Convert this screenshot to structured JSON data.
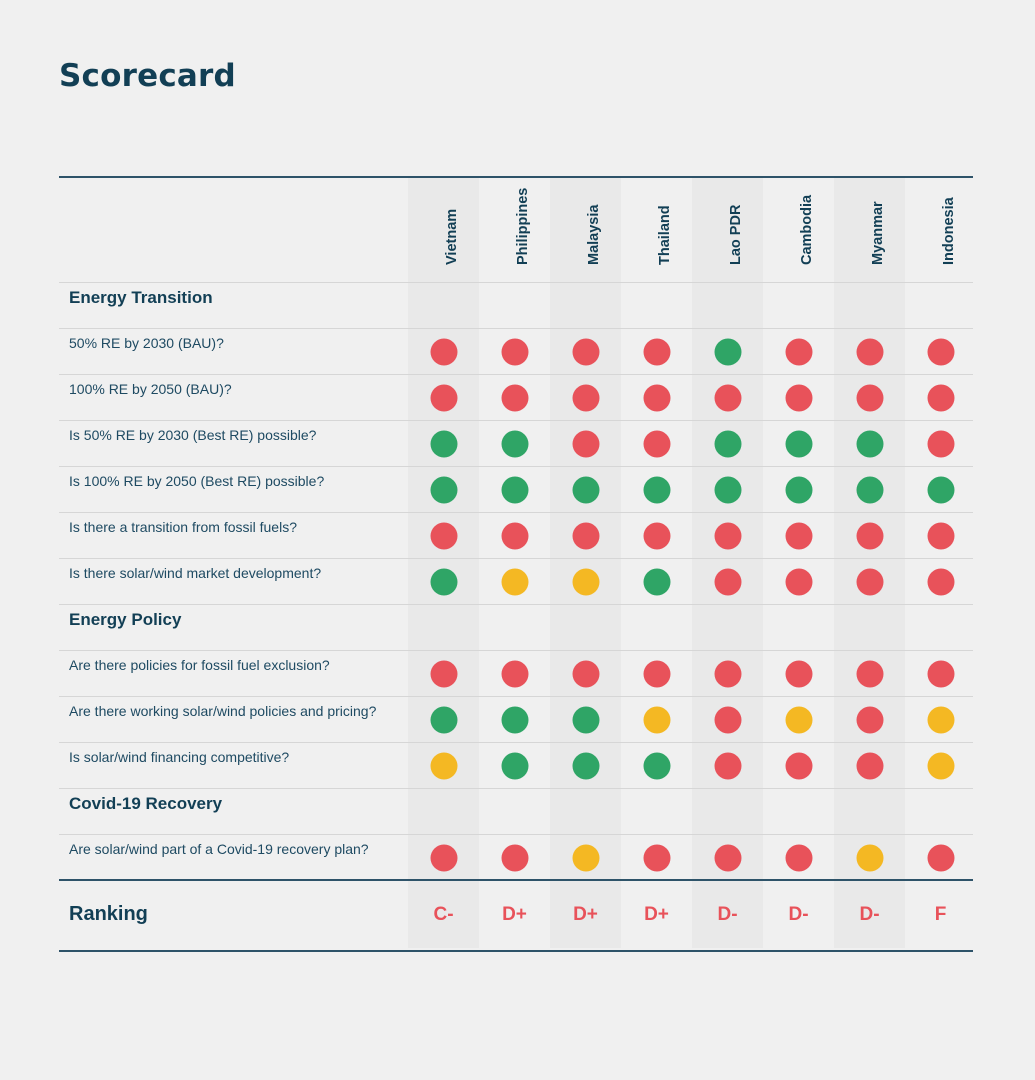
{
  "title": "Scorecard",
  "colors": {
    "red": "#e8525a",
    "green": "#2fa566",
    "yellow": "#f4b823",
    "heading": "#123f55",
    "rule": "#2e5369"
  },
  "countries": [
    "Vietnam",
    "Philippines",
    "Malaysia",
    "Thailand",
    "Lao PDR",
    "Cambodia",
    "Myanmar",
    "Indonesia"
  ],
  "sections": [
    {
      "title": "Energy Transition",
      "rows": [
        {
          "question": "50% RE by 2030 (BAU)?",
          "ratings": [
            "red",
            "red",
            "red",
            "red",
            "green",
            "red",
            "red",
            "red"
          ]
        },
        {
          "question": "100% RE by 2050 (BAU)?",
          "ratings": [
            "red",
            "red",
            "red",
            "red",
            "red",
            "red",
            "red",
            "red"
          ]
        },
        {
          "question": "Is 50% RE by 2030 (Best RE) possible?",
          "ratings": [
            "green",
            "green",
            "red",
            "red",
            "green",
            "green",
            "green",
            "red"
          ]
        },
        {
          "question": "Is 100% RE by 2050 (Best RE) possible?",
          "ratings": [
            "green",
            "green",
            "green",
            "green",
            "green",
            "green",
            "green",
            "green"
          ]
        },
        {
          "question": "Is there a transition from fossil fuels?",
          "ratings": [
            "red",
            "red",
            "red",
            "red",
            "red",
            "red",
            "red",
            "red"
          ]
        },
        {
          "question": "Is there solar/wind market development?",
          "ratings": [
            "green",
            "yellow",
            "yellow",
            "green",
            "red",
            "red",
            "red",
            "red"
          ]
        }
      ]
    },
    {
      "title": "Energy Policy",
      "rows": [
        {
          "question": "Are there policies for fossil fuel exclusion?",
          "ratings": [
            "red",
            "red",
            "red",
            "red",
            "red",
            "red",
            "red",
            "red"
          ]
        },
        {
          "question": "Are there working solar/wind policies and pricing?",
          "ratings": [
            "green",
            "green",
            "green",
            "yellow",
            "red",
            "yellow",
            "red",
            "yellow"
          ]
        },
        {
          "question": "Is solar/wind financing competitive?",
          "ratings": [
            "yellow",
            "green",
            "green",
            "green",
            "red",
            "red",
            "red",
            "yellow"
          ]
        }
      ]
    },
    {
      "title": "Covid-19 Recovery",
      "rows": [
        {
          "question": "Are solar/wind part of a Covid-19 recovery plan?",
          "ratings": [
            "red",
            "red",
            "yellow",
            "red",
            "red",
            "red",
            "yellow",
            "red"
          ]
        }
      ]
    }
  ],
  "ranking": {
    "label": "Ranking",
    "grades": [
      "C-",
      "D+",
      "D+",
      "D+",
      "D-",
      "D-",
      "D-",
      "F"
    ]
  }
}
